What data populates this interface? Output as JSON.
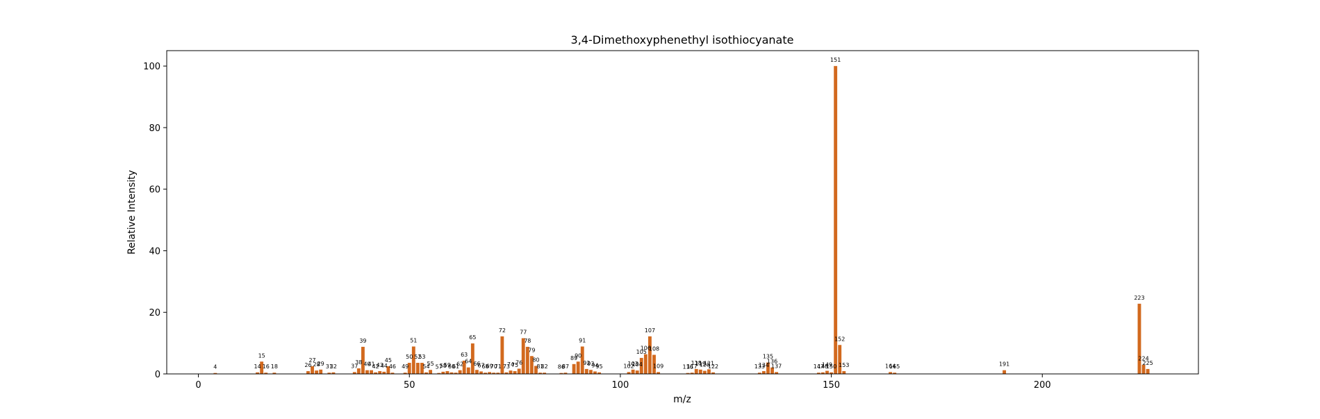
{
  "chart_data": {
    "type": "bar",
    "title": "3,4-Dimethoxyphenethyl isothiocyanate",
    "xlabel": "m/z",
    "ylabel": "Relative Intensity",
    "xlim": [
      -7.5,
      237
    ],
    "ylim": [
      0,
      105
    ],
    "xticks": [
      0,
      50,
      100,
      150,
      200
    ],
    "yticks": [
      0,
      20,
      40,
      60,
      80,
      100
    ],
    "bar_color": "#d2691e",
    "grid": false,
    "legend": "none",
    "peaks": [
      {
        "mz": 4,
        "intensity": 0.3
      },
      {
        "mz": 14,
        "intensity": 0.5
      },
      {
        "mz": 15,
        "intensity": 4.0
      },
      {
        "mz": 16,
        "intensity": 0.4
      },
      {
        "mz": 18,
        "intensity": 0.4
      },
      {
        "mz": 26,
        "intensity": 0.9
      },
      {
        "mz": 27,
        "intensity": 2.5
      },
      {
        "mz": 28,
        "intensity": 1.1
      },
      {
        "mz": 29,
        "intensity": 1.4
      },
      {
        "mz": 31,
        "intensity": 0.4
      },
      {
        "mz": 32,
        "intensity": 0.5
      },
      {
        "mz": 37,
        "intensity": 0.6
      },
      {
        "mz": 38,
        "intensity": 1.8
      },
      {
        "mz": 39,
        "intensity": 8.8
      },
      {
        "mz": 40,
        "intensity": 1.2
      },
      {
        "mz": 41,
        "intensity": 1.2
      },
      {
        "mz": 42,
        "intensity": 0.5
      },
      {
        "mz": 43,
        "intensity": 0.9
      },
      {
        "mz": 44,
        "intensity": 0.7
      },
      {
        "mz": 45,
        "intensity": 2.5
      },
      {
        "mz": 46,
        "intensity": 0.4
      },
      {
        "mz": 49,
        "intensity": 0.4
      },
      {
        "mz": 50,
        "intensity": 3.6
      },
      {
        "mz": 51,
        "intensity": 8.9
      },
      {
        "mz": 52,
        "intensity": 3.6
      },
      {
        "mz": 53,
        "intensity": 3.6
      },
      {
        "mz": 54,
        "intensity": 0.5
      },
      {
        "mz": 55,
        "intensity": 1.3
      },
      {
        "mz": 57,
        "intensity": 0.3
      },
      {
        "mz": 58,
        "intensity": 0.7
      },
      {
        "mz": 59,
        "intensity": 0.9
      },
      {
        "mz": 60,
        "intensity": 0.5
      },
      {
        "mz": 61,
        "intensity": 0.4
      },
      {
        "mz": 62,
        "intensity": 1.2
      },
      {
        "mz": 63,
        "intensity": 4.3
      },
      {
        "mz": 64,
        "intensity": 2.1
      },
      {
        "mz": 65,
        "intensity": 9.9
      },
      {
        "mz": 66,
        "intensity": 1.3
      },
      {
        "mz": 67,
        "intensity": 0.8
      },
      {
        "mz": 68,
        "intensity": 0.4
      },
      {
        "mz": 69,
        "intensity": 0.6
      },
      {
        "mz": 70,
        "intensity": 0.4
      },
      {
        "mz": 71,
        "intensity": 0.4
      },
      {
        "mz": 72,
        "intensity": 12.2
      },
      {
        "mz": 73,
        "intensity": 0.5
      },
      {
        "mz": 74,
        "intensity": 1.1
      },
      {
        "mz": 75,
        "intensity": 0.9
      },
      {
        "mz": 76,
        "intensity": 1.7
      },
      {
        "mz": 77,
        "intensity": 11.6
      },
      {
        "mz": 78,
        "intensity": 8.8
      },
      {
        "mz": 79,
        "intensity": 5.8
      },
      {
        "mz": 80,
        "intensity": 2.6
      },
      {
        "mz": 81,
        "intensity": 0.4
      },
      {
        "mz": 82,
        "intensity": 0.4
      },
      {
        "mz": 86,
        "intensity": 0.3
      },
      {
        "mz": 87,
        "intensity": 0.4
      },
      {
        "mz": 89,
        "intensity": 3.2
      },
      {
        "mz": 90,
        "intensity": 4.0
      },
      {
        "mz": 91,
        "intensity": 8.9
      },
      {
        "mz": 92,
        "intensity": 1.6
      },
      {
        "mz": 93,
        "intensity": 1.3
      },
      {
        "mz": 94,
        "intensity": 0.8
      },
      {
        "mz": 95,
        "intensity": 0.5
      },
      {
        "mz": 102,
        "intensity": 0.6
      },
      {
        "mz": 103,
        "intensity": 1.4
      },
      {
        "mz": 104,
        "intensity": 1.1
      },
      {
        "mz": 105,
        "intensity": 5.2
      },
      {
        "mz": 106,
        "intensity": 6.4
      },
      {
        "mz": 107,
        "intensity": 12.2
      },
      {
        "mz": 108,
        "intensity": 6.2
      },
      {
        "mz": 109,
        "intensity": 0.6
      },
      {
        "mz": 116,
        "intensity": 0.3
      },
      {
        "mz": 117,
        "intensity": 0.4
      },
      {
        "mz": 118,
        "intensity": 1.6
      },
      {
        "mz": 119,
        "intensity": 1.4
      },
      {
        "mz": 120,
        "intensity": 1.0
      },
      {
        "mz": 121,
        "intensity": 1.5
      },
      {
        "mz": 122,
        "intensity": 0.5
      },
      {
        "mz": 133,
        "intensity": 0.4
      },
      {
        "mz": 134,
        "intensity": 0.9
      },
      {
        "mz": 135,
        "intensity": 3.7
      },
      {
        "mz": 136,
        "intensity": 2.1
      },
      {
        "mz": 137,
        "intensity": 0.6
      },
      {
        "mz": 147,
        "intensity": 0.4
      },
      {
        "mz": 148,
        "intensity": 0.5
      },
      {
        "mz": 149,
        "intensity": 1.0
      },
      {
        "mz": 150,
        "intensity": 0.5
      },
      {
        "mz": 151,
        "intensity": 100.0
      },
      {
        "mz": 152,
        "intensity": 9.4
      },
      {
        "mz": 153,
        "intensity": 0.9
      },
      {
        "mz": 164,
        "intensity": 0.6
      },
      {
        "mz": 165,
        "intensity": 0.4
      },
      {
        "mz": 191,
        "intensity": 1.2
      },
      {
        "mz": 223,
        "intensity": 22.8
      },
      {
        "mz": 224,
        "intensity": 3.0
      },
      {
        "mz": 225,
        "intensity": 1.6
      }
    ]
  }
}
